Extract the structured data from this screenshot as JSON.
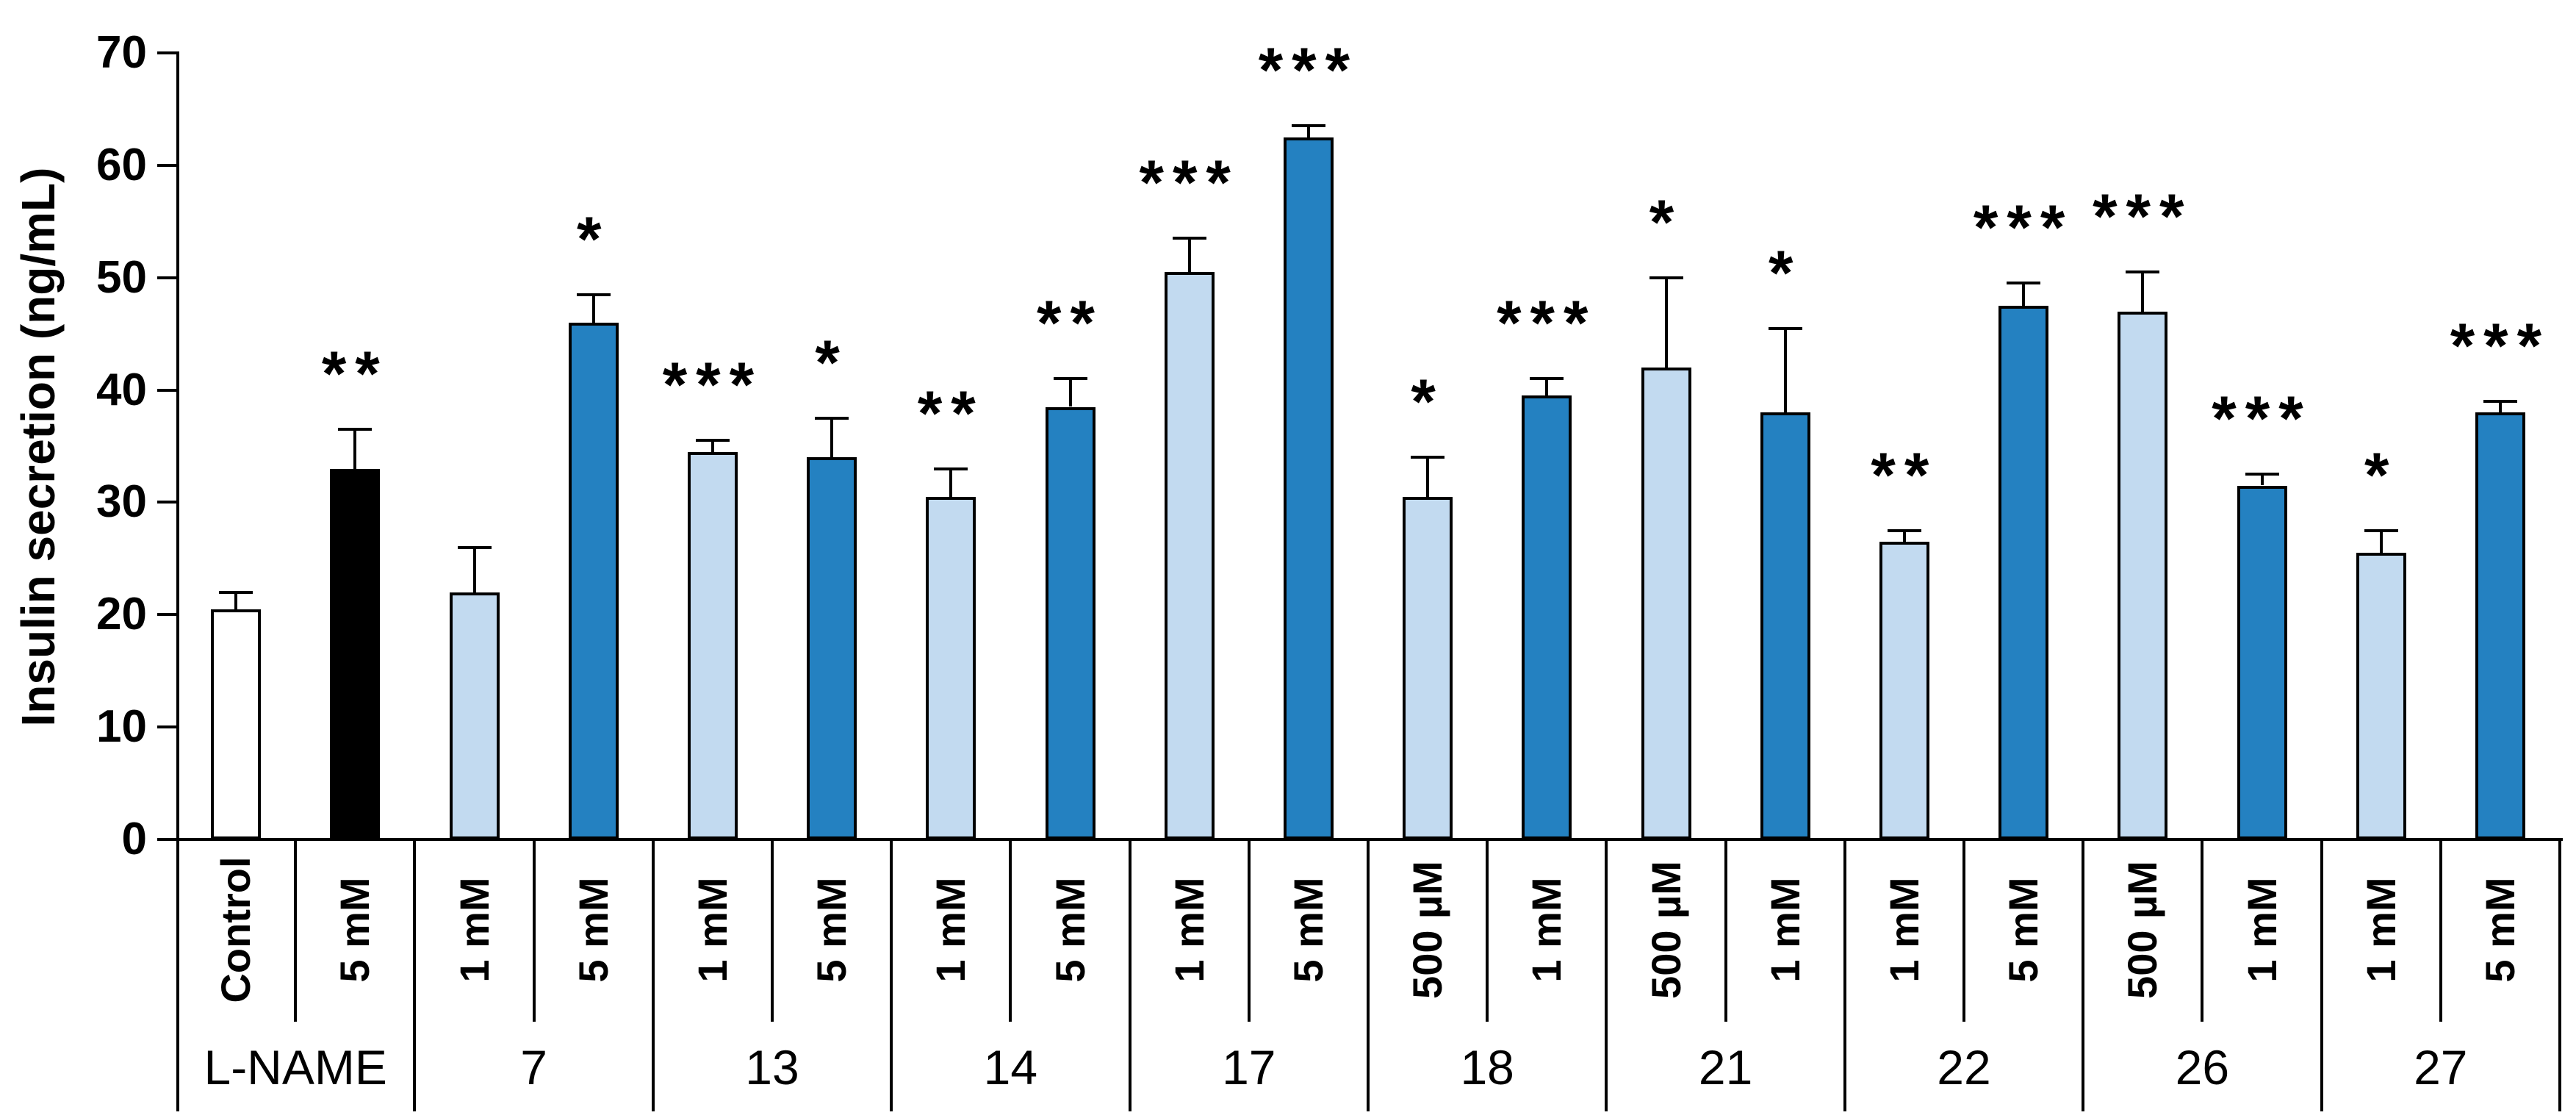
{
  "figure": {
    "background": "#ffffff",
    "y_axis_title": "Insulin secretion (ng/mL)"
  },
  "colors": {
    "white": "#FFFFFF",
    "black": "#000000",
    "light": "#C2DAF0",
    "dark": "#2481C1",
    "outline": "#000000"
  },
  "chart_data": {
    "type": "bar",
    "title": "",
    "xlabel": "",
    "ylabel": "Insulin secretion (ng/mL)",
    "ylim": [
      0,
      70
    ],
    "yticks": [
      0,
      10,
      20,
      30,
      40,
      50,
      60,
      70
    ],
    "grid": false,
    "legend": "none",
    "error_bars": "upper SD whisker with cap",
    "significance_marks": "asterisks above error bars (* p<0.05, ** p<0.01, *** p<0.001)",
    "groups": [
      {
        "label": "L-NAME",
        "bars": [
          {
            "label": "Control",
            "value": 20.5,
            "error": 1.5,
            "sig": "",
            "color_key": "white"
          },
          {
            "label": "5 mM",
            "value": 33,
            "error": 3.5,
            "sig": "**",
            "color_key": "black"
          }
        ]
      },
      {
        "label": "7",
        "bars": [
          {
            "label": "1 mM",
            "value": 22,
            "error": 4,
            "sig": "",
            "color_key": "light"
          },
          {
            "label": "5 mM",
            "value": 46,
            "error": 2.5,
            "sig": "*",
            "color_key": "dark"
          }
        ]
      },
      {
        "label": "13",
        "bars": [
          {
            "label": "1 mM",
            "value": 34.5,
            "error": 1,
            "sig": "***",
            "color_key": "light"
          },
          {
            "label": "5 mM",
            "value": 34,
            "error": 3.5,
            "sig": "*",
            "color_key": "dark"
          }
        ]
      },
      {
        "label": "14",
        "bars": [
          {
            "label": "1 mM",
            "value": 30.5,
            "error": 2.5,
            "sig": "**",
            "color_key": "light"
          },
          {
            "label": "5 mM",
            "value": 38.5,
            "error": 2.5,
            "sig": "**",
            "color_key": "dark"
          }
        ]
      },
      {
        "label": "17",
        "bars": [
          {
            "label": "1 mM",
            "value": 50.5,
            "error": 3,
            "sig": "***",
            "color_key": "light"
          },
          {
            "label": "5 mM",
            "value": 62.5,
            "error": 1,
            "sig": "***",
            "color_key": "dark"
          }
        ]
      },
      {
        "label": "18",
        "bars": [
          {
            "label": "500 µM",
            "value": 30.5,
            "error": 3.5,
            "sig": "*",
            "color_key": "light"
          },
          {
            "label": "1 mM",
            "value": 39.5,
            "error": 1.5,
            "sig": "***",
            "color_key": "dark"
          }
        ]
      },
      {
        "label": "21",
        "bars": [
          {
            "label": "500 µM",
            "value": 42,
            "error": 8,
            "sig": "*",
            "color_key": "light"
          },
          {
            "label": "1 mM",
            "value": 38,
            "error": 7.5,
            "sig": "*",
            "color_key": "dark"
          }
        ]
      },
      {
        "label": "22",
        "bars": [
          {
            "label": "1 mM",
            "value": 26.5,
            "error": 1,
            "sig": "**",
            "color_key": "light"
          },
          {
            "label": "5 mM",
            "value": 47.5,
            "error": 2,
            "sig": "***",
            "color_key": "dark"
          }
        ]
      },
      {
        "label": "26",
        "bars": [
          {
            "label": "500 µM",
            "value": 47,
            "error": 3.5,
            "sig": "***",
            "color_key": "light"
          },
          {
            "label": "1 mM",
            "value": 31.5,
            "error": 1,
            "sig": "***",
            "color_key": "dark"
          }
        ]
      },
      {
        "label": "27",
        "bars": [
          {
            "label": "1 mM",
            "value": 25.5,
            "error": 2,
            "sig": "*",
            "color_key": "light"
          },
          {
            "label": "5 mM",
            "value": 38,
            "error": 1,
            "sig": "***",
            "color_key": "dark"
          }
        ]
      }
    ]
  }
}
